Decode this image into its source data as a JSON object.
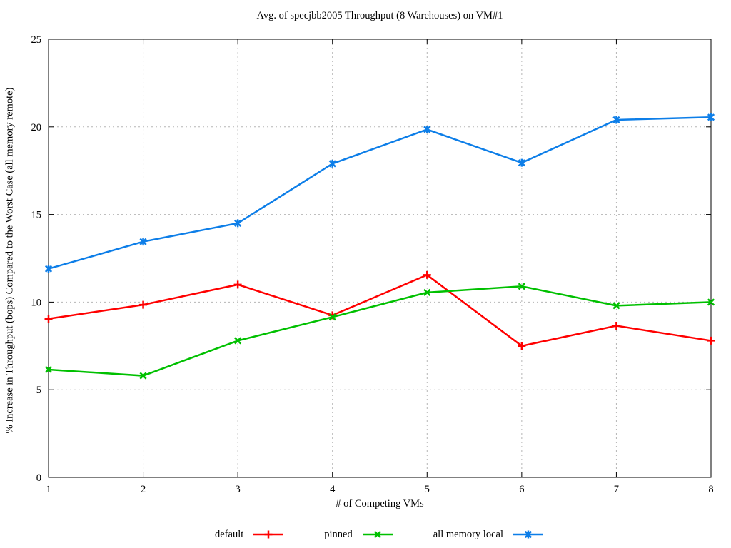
{
  "window": {
    "background": "#ffffff"
  },
  "chart_data": {
    "type": "line",
    "title": "Avg. of specjbb2005 Throughput (8 Warehouses) on VM#1",
    "xlabel": "# of Competing VMs",
    "ylabel": "% Increase in Throughput (bops) Compared to the Worst Case (all memory remote)",
    "x": [
      1,
      2,
      3,
      4,
      5,
      6,
      7,
      8
    ],
    "xlim": [
      1,
      8
    ],
    "ylim": [
      0,
      25
    ],
    "xticks": [
      1,
      2,
      3,
      4,
      5,
      6,
      7,
      8
    ],
    "yticks": [
      0,
      5,
      10,
      15,
      20,
      25
    ],
    "grid": true,
    "grid_color": "#b5b5b5",
    "border_color": "#000000",
    "legend_position": "bottom-center",
    "series": [
      {
        "name": "default",
        "color": "#ff0000",
        "marker": "plus",
        "values": [
          9.05,
          9.85,
          11.0,
          9.25,
          11.55,
          7.5,
          8.65,
          7.8
        ]
      },
      {
        "name": "pinned",
        "color": "#00c000",
        "marker": "cross",
        "values": [
          6.15,
          5.8,
          7.8,
          9.15,
          10.55,
          10.9,
          9.8,
          10.0
        ]
      },
      {
        "name": "all memory local",
        "color": "#0d7ee8",
        "marker": "star",
        "values": [
          11.9,
          13.45,
          14.5,
          17.9,
          19.85,
          17.95,
          20.4,
          20.55
        ]
      }
    ]
  }
}
